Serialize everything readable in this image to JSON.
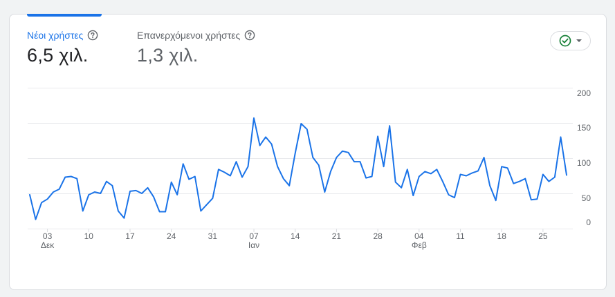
{
  "tabs": [
    {
      "label": "Νέοι χρήστες",
      "value": "6,5 χιλ.",
      "active": true
    },
    {
      "label": "Επανερχόμενοι χρήστες",
      "value": "1,3 χιλ.",
      "active": false
    }
  ],
  "colors": {
    "accent": "#1a73e8",
    "line": "#1a73e8",
    "active_label": "#1a73e8",
    "inactive_label": "#5f6368",
    "inactive_value": "#5f6368",
    "grid": "#e8eaed",
    "status_check": "#188038"
  },
  "icons": {
    "help": "help-circle-icon",
    "status": "check-circle-icon",
    "dropdown": "dropdown-caret-icon"
  },
  "chart_data": {
    "type": "line",
    "title": "",
    "xlabel": "",
    "ylabel": "",
    "ylim": [
      0,
      200
    ],
    "yticks": [
      "200",
      "150",
      "100",
      "50",
      "0"
    ],
    "y_axis_position": "right",
    "grid": true,
    "x_ticks": [
      {
        "day": "03",
        "month": "Δεκ",
        "index": 3
      },
      {
        "day": "10",
        "month": "",
        "index": 10
      },
      {
        "day": "17",
        "month": "",
        "index": 17
      },
      {
        "day": "24",
        "month": "",
        "index": 24
      },
      {
        "day": "31",
        "month": "",
        "index": 31
      },
      {
        "day": "07",
        "month": "Ιαν",
        "index": 38
      },
      {
        "day": "14",
        "month": "",
        "index": 45
      },
      {
        "day": "21",
        "month": "",
        "index": 52
      },
      {
        "day": "28",
        "month": "",
        "index": 59
      },
      {
        "day": "04",
        "month": "Φεβ",
        "index": 66
      },
      {
        "day": "11",
        "month": "",
        "index": 73
      },
      {
        "day": "18",
        "month": "",
        "index": 80
      },
      {
        "day": "25",
        "month": "",
        "index": 87
      }
    ],
    "series": [
      {
        "values": [
          48,
          13,
          37,
          42,
          52,
          56,
          73,
          74,
          71,
          25,
          48,
          52,
          50,
          67,
          61,
          25,
          15,
          53,
          54,
          50,
          58,
          45,
          24,
          24,
          66,
          48,
          92,
          70,
          74,
          25,
          34,
          43,
          84,
          80,
          75,
          95,
          73,
          88,
          157,
          118,
          130,
          120,
          88,
          71,
          61,
          107,
          149,
          141,
          101,
          90,
          52,
          81,
          101,
          110,
          108,
          95,
          95,
          72,
          74,
          131,
          88,
          146,
          66,
          58,
          84,
          47,
          74,
          81,
          78,
          84,
          67,
          48,
          44,
          77,
          75,
          79,
          82,
          101,
          61,
          40,
          88,
          86,
          64,
          67,
          71,
          41,
          42,
          77,
          67,
          73,
          130,
          76
        ]
      }
    ]
  }
}
